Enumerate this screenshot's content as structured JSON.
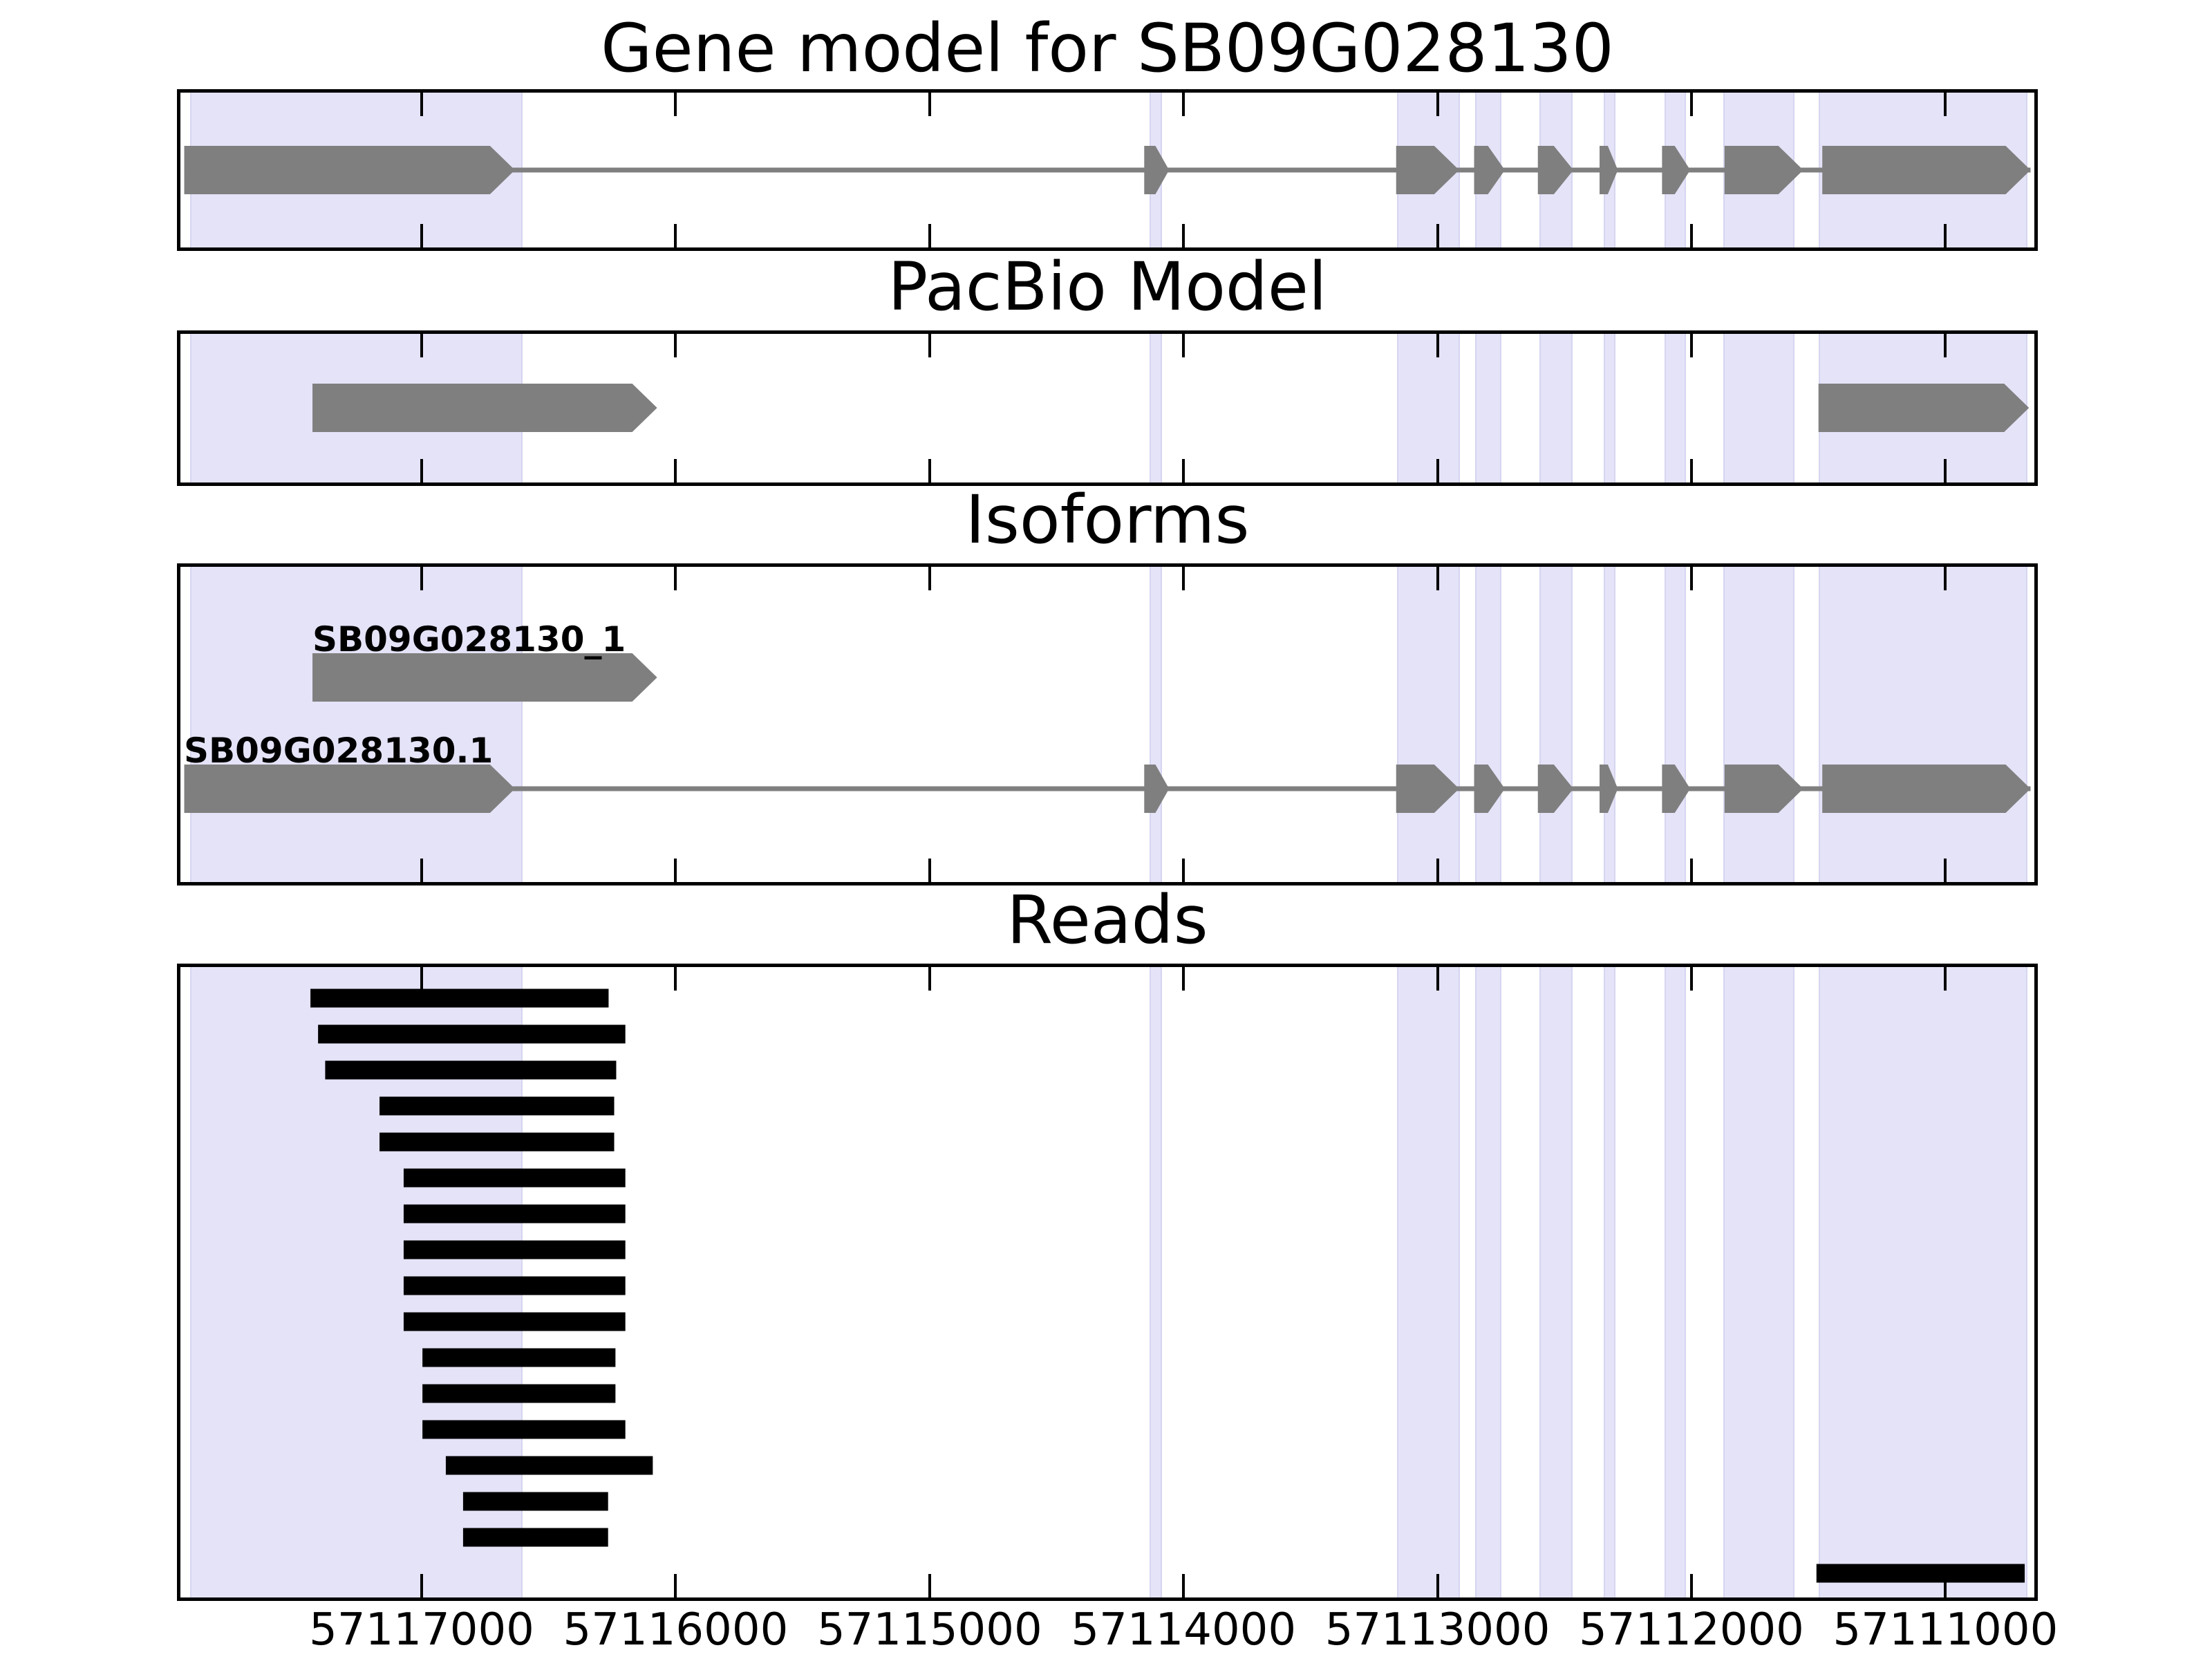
{
  "chart_data": {
    "type": "gene-model-tracks",
    "title": "Gene model for SB09G028130",
    "gene_id": "SB09G028130",
    "x_axis": {
      "direction": "decreasing",
      "left_bp": 57117950,
      "right_bp": 57110650,
      "tick_interval": 1000,
      "ticks": [
        57117000,
        57116000,
        57115000,
        57114000,
        57113000,
        57112000,
        57111000
      ],
      "tick_labels": [
        "57117000",
        "57116000",
        "57115000",
        "57114000",
        "57113000",
        "57112000",
        "57111000"
      ]
    },
    "highlight_regions_bp": [
      [
        57117913,
        57116603
      ],
      [
        57114133,
        57114084
      ],
      [
        57113160,
        57112912
      ],
      [
        57112852,
        57112748
      ],
      [
        57112598,
        57112468
      ],
      [
        57112345,
        57112300
      ],
      [
        57112105,
        57112022
      ],
      [
        57111875,
        57111595
      ],
      [
        57111500,
        57110678
      ]
    ],
    "tracks": [
      {
        "title": "Gene model for SB09G028130",
        "type": "gene",
        "features": [
          {
            "name": "SB09G028130",
            "strand_arrow": "right",
            "has_intron_line": true,
            "exons": [
              [
                57117935,
                57116633
              ],
              [
                57114155,
                57114057
              ],
              [
                57113163,
                57112915
              ],
              [
                57112856,
                57112735
              ],
              [
                57112605,
                57112465
              ],
              [
                57112362,
                57112290
              ],
              [
                57112116,
                57112005
              ],
              [
                57111870,
                57111560
              ],
              [
                57111485,
                57110665
              ]
            ]
          }
        ]
      },
      {
        "title": "PacBio Model",
        "type": "blocks",
        "features": [
          {
            "name": "pacbio-block-left",
            "strand_arrow": "right",
            "has_intron_line": false,
            "exons": [
              [
                57117430,
                57116073
              ]
            ]
          },
          {
            "name": "pacbio-block-right",
            "strand_arrow": "right",
            "has_intron_line": false,
            "exons": [
              [
                57111500,
                57110671
              ]
            ]
          }
        ]
      },
      {
        "title": "Isoforms",
        "type": "isoforms",
        "features": [
          {
            "label": "SB09G028130_1",
            "strand_arrow": "right",
            "has_intron_line": false,
            "exons": [
              [
                57117430,
                57116073
              ]
            ]
          },
          {
            "label": "SB09G028130.1",
            "strand_arrow": "right",
            "has_intron_line": true,
            "exons": [
              [
                57117935,
                57116633
              ],
              [
                57114155,
                57114057
              ],
              [
                57113163,
                57112915
              ],
              [
                57112856,
                57112735
              ],
              [
                57112605,
                57112465
              ],
              [
                57112362,
                57112290
              ],
              [
                57112116,
                57112005
              ],
              [
                57111870,
                57111560
              ],
              [
                57111485,
                57110665
              ]
            ]
          }
        ]
      },
      {
        "title": "Reads",
        "type": "reads",
        "reads": [
          [
            57117438,
            57116264
          ],
          [
            57117408,
            57116198
          ],
          [
            57117380,
            57116234
          ],
          [
            57117166,
            57116242
          ],
          [
            57117166,
            57116242
          ],
          [
            57117071,
            57116198
          ],
          [
            57117071,
            57116198
          ],
          [
            57117071,
            57116198
          ],
          [
            57117071,
            57116198
          ],
          [
            57117071,
            57116198
          ],
          [
            57116997,
            57116237
          ],
          [
            57116997,
            57116237
          ],
          [
            57116997,
            57116198
          ],
          [
            57116905,
            57116090
          ],
          [
            57116837,
            57116266
          ],
          [
            57116837,
            57116266
          ],
          [
            57111508,
            57110688
          ]
        ]
      }
    ],
    "colors": {
      "feature_gray": "#7f7f7f",
      "intron_line": "#7f7f7f",
      "read_black": "#000000",
      "highlight_fill": "#e4e3f8",
      "highlight_edge": "#d6d5f1",
      "axis_black": "#000000",
      "background": "#ffffff"
    }
  }
}
